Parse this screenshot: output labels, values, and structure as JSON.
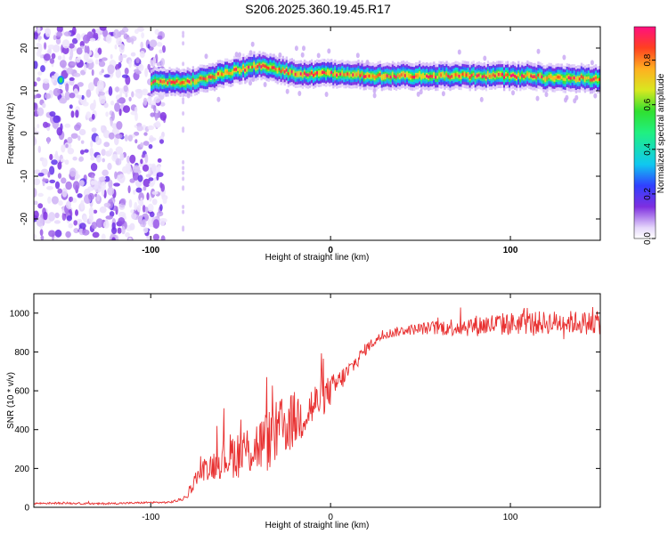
{
  "figure_title": "S206.2025.360.19.45.R17",
  "chart_data": [
    {
      "type": "heatmap",
      "title": "",
      "xlabel": "Height of straight line (km)",
      "ylabel": "Frequency (Hz)",
      "xlim": [
        -165,
        150
      ],
      "ylim": [
        -25,
        25
      ],
      "xticks": [
        -100,
        0,
        100
      ],
      "yticks": [
        -20,
        -10,
        0,
        10,
        20
      ],
      "grid": false,
      "colorbar": {
        "label": "Normalized spectral amplitude",
        "range": [
          0,
          0.95
        ],
        "ticks": [
          0.0,
          0.2,
          0.4,
          0.6,
          0.8
        ]
      },
      "ridge": {
        "description": "dominant frequency line",
        "x": [
          -100,
          -90,
          -80,
          -70,
          -60,
          -50,
          -40,
          -30,
          -20,
          -10,
          0,
          10,
          20,
          30,
          40,
          50,
          60,
          70,
          80,
          90,
          100,
          110,
          120,
          130,
          140,
          150
        ],
        "y": [
          12,
          12,
          12,
          13,
          14,
          15,
          16,
          15,
          14,
          14,
          14,
          14,
          13.5,
          13.5,
          13.5,
          13.5,
          13.5,
          13.5,
          13.5,
          13.5,
          13.5,
          13.5,
          13,
          13,
          13,
          12.5
        ]
      },
      "noise_region_x": [
        -165,
        -80
      ]
    },
    {
      "type": "line",
      "title": "",
      "xlabel": "Height of straight line (km)",
      "ylabel": "SNR (10 * v/v)",
      "xlim": [
        -165,
        150
      ],
      "ylim": [
        0,
        1100
      ],
      "xticks": [
        -100,
        0,
        100
      ],
      "yticks": [
        0,
        200,
        400,
        600,
        800,
        1000
      ],
      "grid": false,
      "color": "#e83030",
      "x": [
        -165,
        -150,
        -140,
        -130,
        -120,
        -110,
        -100,
        -90,
        -85,
        -80,
        -75,
        -70,
        -65,
        -60,
        -55,
        -50,
        -45,
        -40,
        -35,
        -30,
        -25,
        -20,
        -15,
        -10,
        -5,
        0,
        5,
        10,
        15,
        20,
        25,
        30,
        40,
        50,
        60,
        70,
        80,
        90,
        100,
        110,
        120,
        130,
        140,
        150
      ],
      "y": [
        20,
        22,
        20,
        18,
        20,
        22,
        25,
        25,
        35,
        50,
        150,
        200,
        220,
        250,
        270,
        280,
        300,
        320,
        340,
        380,
        420,
        450,
        480,
        520,
        560,
        600,
        650,
        700,
        760,
        820,
        860,
        890,
        910,
        920,
        925,
        930,
        935,
        940,
        945,
        950,
        950,
        955,
        950,
        950
      ],
      "noise_amplitude": [
        5,
        5,
        5,
        5,
        5,
        5,
        5,
        5,
        8,
        10,
        40,
        60,
        80,
        100,
        120,
        130,
        140,
        150,
        160,
        170,
        160,
        150,
        130,
        120,
        100,
        80,
        60,
        50,
        40,
        30,
        25,
        25,
        25,
        30,
        40,
        50,
        55,
        60,
        60,
        60,
        60,
        60,
        60,
        60
      ]
    }
  ]
}
